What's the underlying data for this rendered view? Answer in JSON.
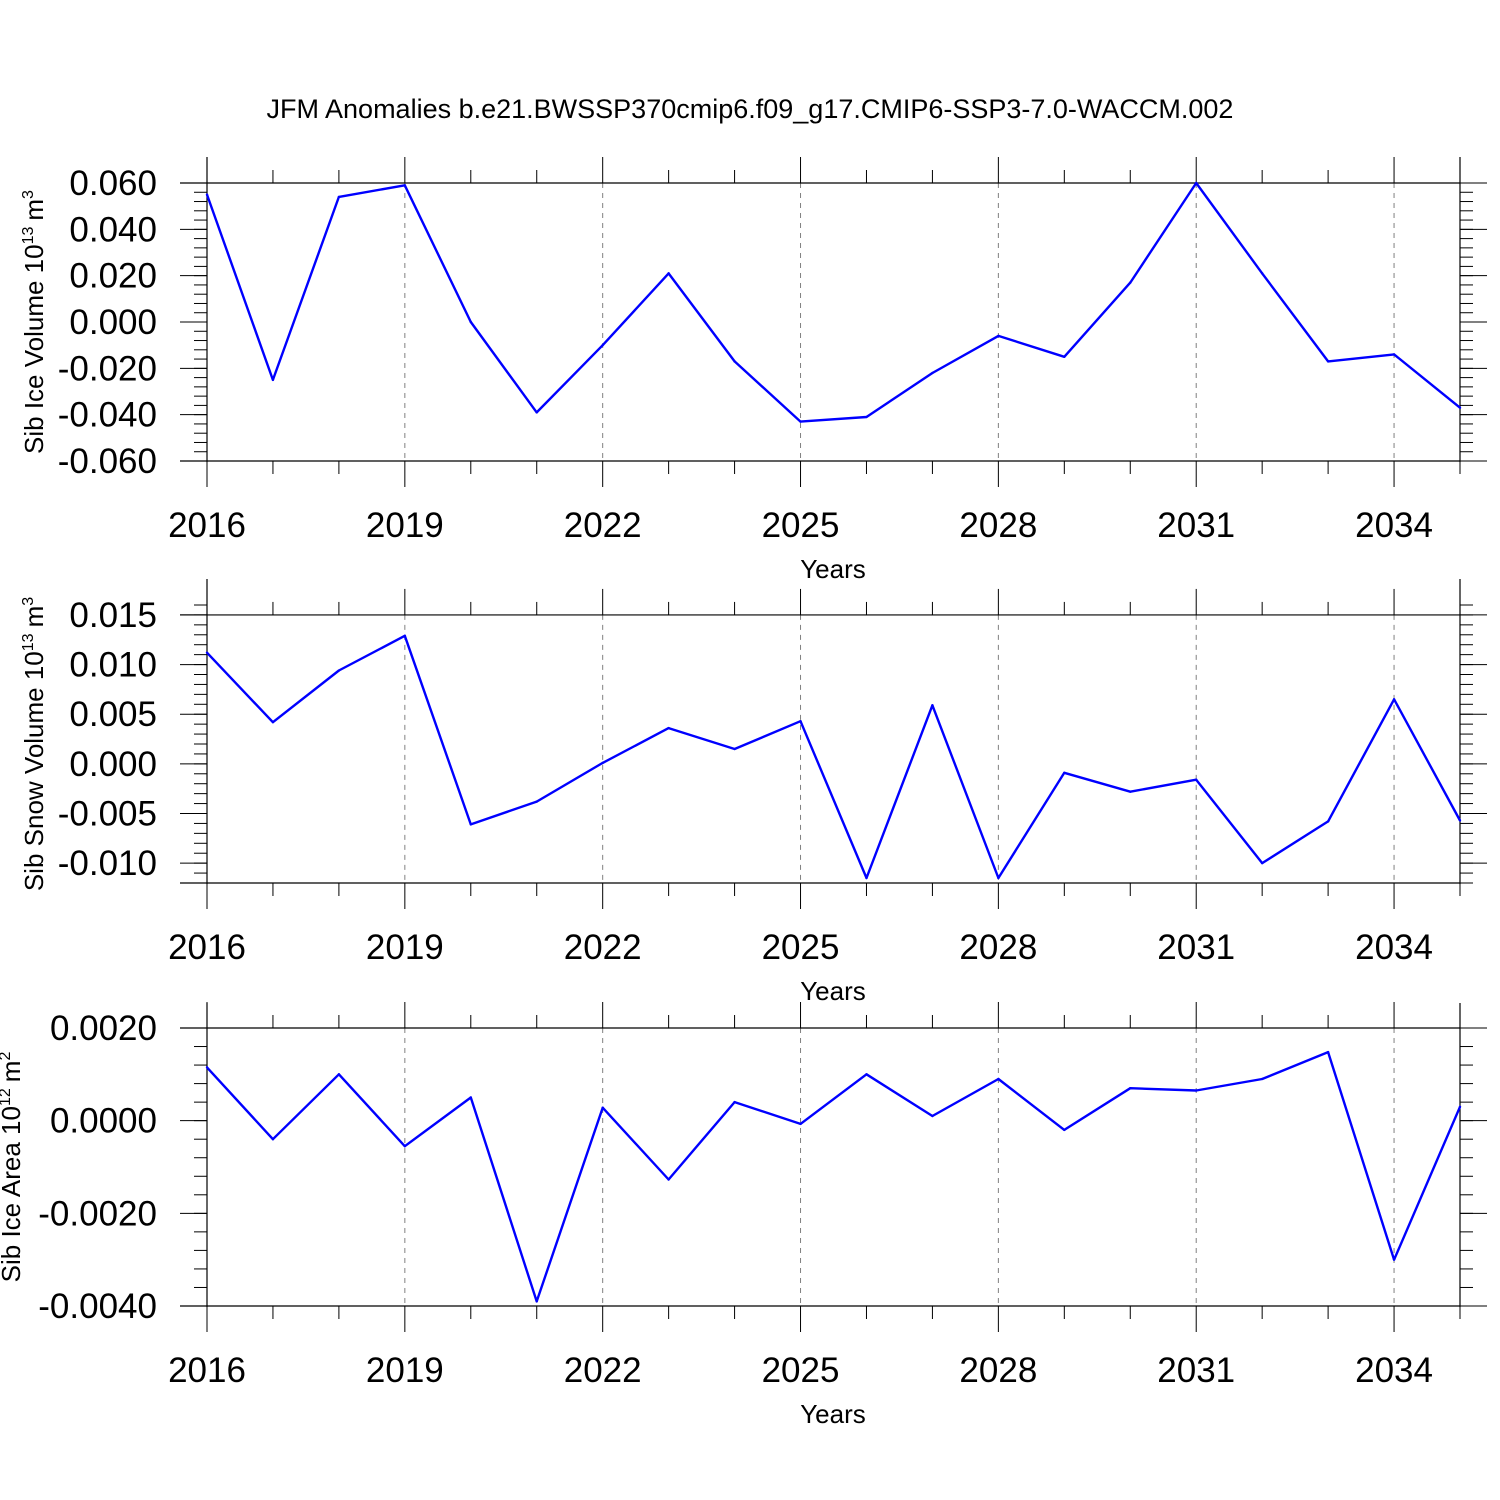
{
  "figure_title": "JFM Anomalies b.e21.BWSSP370cmip6.f09_g17.CMIP6-SSP3-7.0-WACCM.002",
  "colors": {
    "line": "#0000ff",
    "axis": "#000000",
    "grid": "#808080"
  },
  "chart_data": [
    {
      "type": "line",
      "ylabel": "Sib Ice Volume 10",
      "ylabel_exp": "13",
      "ylabel_unit": "m",
      "ylabel_unit_exp": "3",
      "xlabel": "Years",
      "xlim": [
        2016,
        2035
      ],
      "ylim": [
        -0.06,
        0.06
      ],
      "x_ticks": [
        "2016",
        "2019",
        "2022",
        "2025",
        "2028",
        "2031",
        "2034"
      ],
      "y_ticks": [
        "0.060",
        "0.040",
        "0.020",
        "0.000",
        "-0.020",
        "-0.040",
        "-0.060"
      ],
      "x": [
        2016,
        2017,
        2018,
        2019,
        2020,
        2021,
        2022,
        2023,
        2024,
        2025,
        2026,
        2027,
        2028,
        2029,
        2030,
        2031,
        2032,
        2033,
        2034,
        2035
      ],
      "values": [
        0.055,
        -0.025,
        0.054,
        0.059,
        0.0,
        -0.039,
        -0.01,
        0.021,
        -0.017,
        -0.043,
        -0.041,
        -0.022,
        -0.006,
        -0.015,
        0.017,
        0.06,
        0.021,
        -0.017,
        -0.014,
        -0.037
      ]
    },
    {
      "type": "line",
      "ylabel": "Sib Snow Volume 10",
      "ylabel_exp": "13",
      "ylabel_unit": "m",
      "ylabel_unit_exp": "3",
      "xlabel": "Years",
      "xlim": [
        2016,
        2035
      ],
      "ylim": [
        -0.012,
        0.016
      ],
      "x_ticks": [
        "2016",
        "2019",
        "2022",
        "2025",
        "2028",
        "2031",
        "2034"
      ],
      "y_ticks": [
        "0.015",
        "0.010",
        "0.005",
        "0.000",
        "-0.005",
        "-0.010"
      ],
      "x": [
        2016,
        2017,
        2018,
        2019,
        2020,
        2021,
        2022,
        2023,
        2024,
        2025,
        2026,
        2027,
        2028,
        2029,
        2030,
        2031,
        2032,
        2033,
        2034,
        2035
      ],
      "values": [
        0.0112,
        0.0042,
        0.0094,
        0.0129,
        -0.0061,
        -0.0038,
        0.0001,
        0.0036,
        0.0015,
        0.0043,
        -0.0115,
        0.0059,
        -0.0115,
        -0.0009,
        -0.0028,
        -0.0016,
        -0.01,
        -0.0058,
        0.0065,
        -0.0057
      ]
    },
    {
      "type": "line",
      "ylabel": "Sib Ice Area 10",
      "ylabel_exp": "12",
      "ylabel_unit": "m",
      "ylabel_unit_exp": "2",
      "xlabel": "Years",
      "xlim": [
        2016,
        2035
      ],
      "ylim": [
        -0.004,
        0.002
      ],
      "x_ticks": [
        "2016",
        "2019",
        "2022",
        "2025",
        "2028",
        "2031",
        "2034"
      ],
      "y_ticks": [
        "0.0020",
        "0.0000",
        "-0.0020",
        "-0.0040"
      ],
      "x": [
        2016,
        2017,
        2018,
        2019,
        2020,
        2021,
        2022,
        2023,
        2024,
        2025,
        2026,
        2027,
        2028,
        2029,
        2030,
        2031,
        2032,
        2033,
        2034,
        2035
      ],
      "values": [
        0.00115,
        -0.0004,
        0.001,
        -0.00055,
        0.0005,
        -0.0039,
        0.00028,
        -0.00127,
        0.0004,
        -7e-05,
        0.001,
        0.0001,
        0.0009,
        -0.0002,
        0.0007,
        0.00065,
        0.0009,
        0.00148,
        -0.003,
        0.0003
      ]
    }
  ]
}
